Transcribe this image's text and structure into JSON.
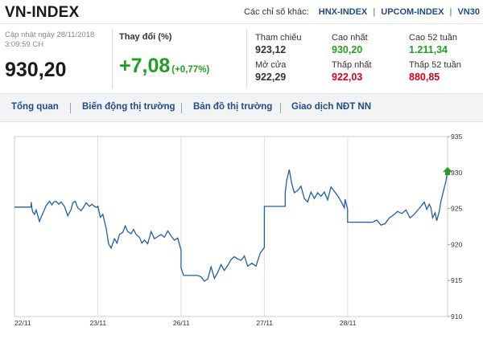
{
  "header": {
    "title": "VN-INDEX",
    "others_label": "Các chỉ số khác:",
    "links": [
      "HNX-INDEX",
      "UPCOM-INDEX",
      "VN30"
    ]
  },
  "summary": {
    "update_line1": "Cập nhật ngày 28/11/2018",
    "update_line2": "3:09:59 CH",
    "price": "930,20",
    "change_label": "Thay đổi (%)",
    "change_value": "+7,08",
    "change_percent": "(+0,77%)"
  },
  "stats": [
    {
      "label": "Tham chiếu",
      "value": "923,12",
      "color": "#333333"
    },
    {
      "label": "Cao nhất",
      "value": "930,20",
      "color": "#21a020"
    },
    {
      "label": "Cao 52 tuần",
      "value": "1.211,34",
      "color": "#21a020"
    },
    {
      "label": "Mở cửa",
      "value": "922,29",
      "color": "#333333"
    },
    {
      "label": "Thấp nhất",
      "value": "922,03",
      "color": "#d0021b"
    },
    {
      "label": "Thấp 52 tuần",
      "value": "880,85",
      "color": "#d0021b"
    }
  ],
  "tabs": [
    "Tổng quan",
    "Biến động thị trường",
    "Bản đồ thị trường",
    "Giao dịch NĐT NN"
  ],
  "colors": {
    "line": "#1f5fa6",
    "up": "#21a020",
    "down": "#d0021b",
    "link": "#1e4c87"
  },
  "chart_data": {
    "type": "line",
    "x_ticks": [
      "22/11",
      "23/11",
      "26/11",
      "27/11",
      "28/11"
    ],
    "y_ticks": [
      910,
      915,
      920,
      925,
      930,
      935
    ],
    "ylim": [
      910,
      935
    ],
    "grid": "vertical",
    "series": [
      {
        "x": [
          0.0,
          0.2,
          0.2,
          0.21,
          0.22,
          0.24,
          0.26,
          0.28,
          0.3,
          0.32,
          0.35,
          0.38,
          0.42,
          0.45,
          0.47,
          0.5,
          0.53,
          0.56,
          0.6,
          0.64,
          0.68,
          0.7,
          0.73,
          0.76,
          0.8,
          0.83,
          0.86,
          0.9,
          0.93,
          0.97,
          1.0,
          1.0,
          1.03,
          1.06,
          1.1,
          1.13,
          1.16,
          1.2,
          1.23,
          1.26,
          1.3,
          1.33,
          1.36,
          1.4,
          1.43,
          1.46,
          1.5,
          1.53,
          1.56,
          1.6,
          1.64,
          1.68,
          1.72,
          1.76,
          1.8,
          1.84,
          1.88,
          1.92,
          1.96,
          2.0,
          2.0,
          2.03,
          2.06,
          2.1,
          2.13,
          2.17,
          2.2,
          2.24,
          2.28,
          2.32,
          2.36,
          2.4,
          2.44,
          2.48,
          2.52,
          2.56,
          2.6,
          2.64,
          2.68,
          2.72,
          2.76,
          2.8,
          2.85,
          2.9,
          2.95,
          3.0,
          3.0,
          3.05,
          3.1,
          3.15,
          3.2,
          3.25,
          3.25,
          3.27,
          3.3,
          3.33,
          3.36,
          3.4,
          3.44,
          3.48,
          3.52,
          3.56,
          3.6,
          3.64,
          3.68,
          3.72,
          3.76,
          3.8,
          3.84,
          3.88,
          3.92,
          3.96,
          3.97,
          4.0,
          4.0,
          4.1,
          4.2,
          4.3,
          4.35,
          4.4,
          4.45,
          4.5,
          4.55,
          4.6,
          4.65,
          4.7,
          4.75,
          4.8,
          4.85,
          4.88,
          4.92,
          4.95,
          4.98,
          5.0,
          5.02,
          5.05,
          5.07,
          5.1,
          5.12,
          5.15,
          5.18,
          5.2
        ],
        "y": [
          925.2,
          925.2,
          925.9,
          925.0,
          924.5,
          924.2,
          924.8,
          924.0,
          923.2,
          923.8,
          924.6,
          925.4,
          926.0,
          925.5,
          925.9,
          926.0,
          925.6,
          925.9,
          925.3,
          924.0,
          924.9,
          925.8,
          926.0,
          925.1,
          924.7,
          925.2,
          925.8,
          925.3,
          925.6,
          925.2,
          925.2,
          925.4,
          923.8,
          924.2,
          922.3,
          920.1,
          919.5,
          920.8,
          920.2,
          921.4,
          921.7,
          922.6,
          921.8,
          921.5,
          922.1,
          921.4,
          921.0,
          920.2,
          920.6,
          920.1,
          921.8,
          920.8,
          921.1,
          921.4,
          921.0,
          921.9,
          921.2,
          920.6,
          920.9,
          919.2,
          916.8,
          915.7,
          915.7,
          915.7,
          915.7,
          915.7,
          915.7,
          915.5,
          914.9,
          915.2,
          916.9,
          915.3,
          916.1,
          917.2,
          916.4,
          917.1,
          917.9,
          918.3,
          918.0,
          917.8,
          918.4,
          917.0,
          917.4,
          917.0,
          918.8,
          919.6,
          925.3,
          925.3,
          925.3,
          925.3,
          925.3,
          925.3,
          927.2,
          929.0,
          930.4,
          928.4,
          927.2,
          927.5,
          928.1,
          926.4,
          925.9,
          927.3,
          926.4,
          927.2,
          926.7,
          927.3,
          926.2,
          928.0,
          927.4,
          926.8,
          926.0,
          925.1,
          926.3,
          924.9,
          923.1,
          923.1,
          923.1,
          923.1,
          923.4,
          922.7,
          922.9,
          923.7,
          924.1,
          924.6,
          924.3,
          924.8,
          923.7,
          924.2,
          924.9,
          925.3,
          925.9,
          924.9,
          925.6,
          925.1,
          923.7,
          924.4,
          923.3,
          924.6,
          926.0,
          927.4,
          928.8,
          930.2
        ]
      }
    ],
    "last_marker": "up-arrow"
  }
}
